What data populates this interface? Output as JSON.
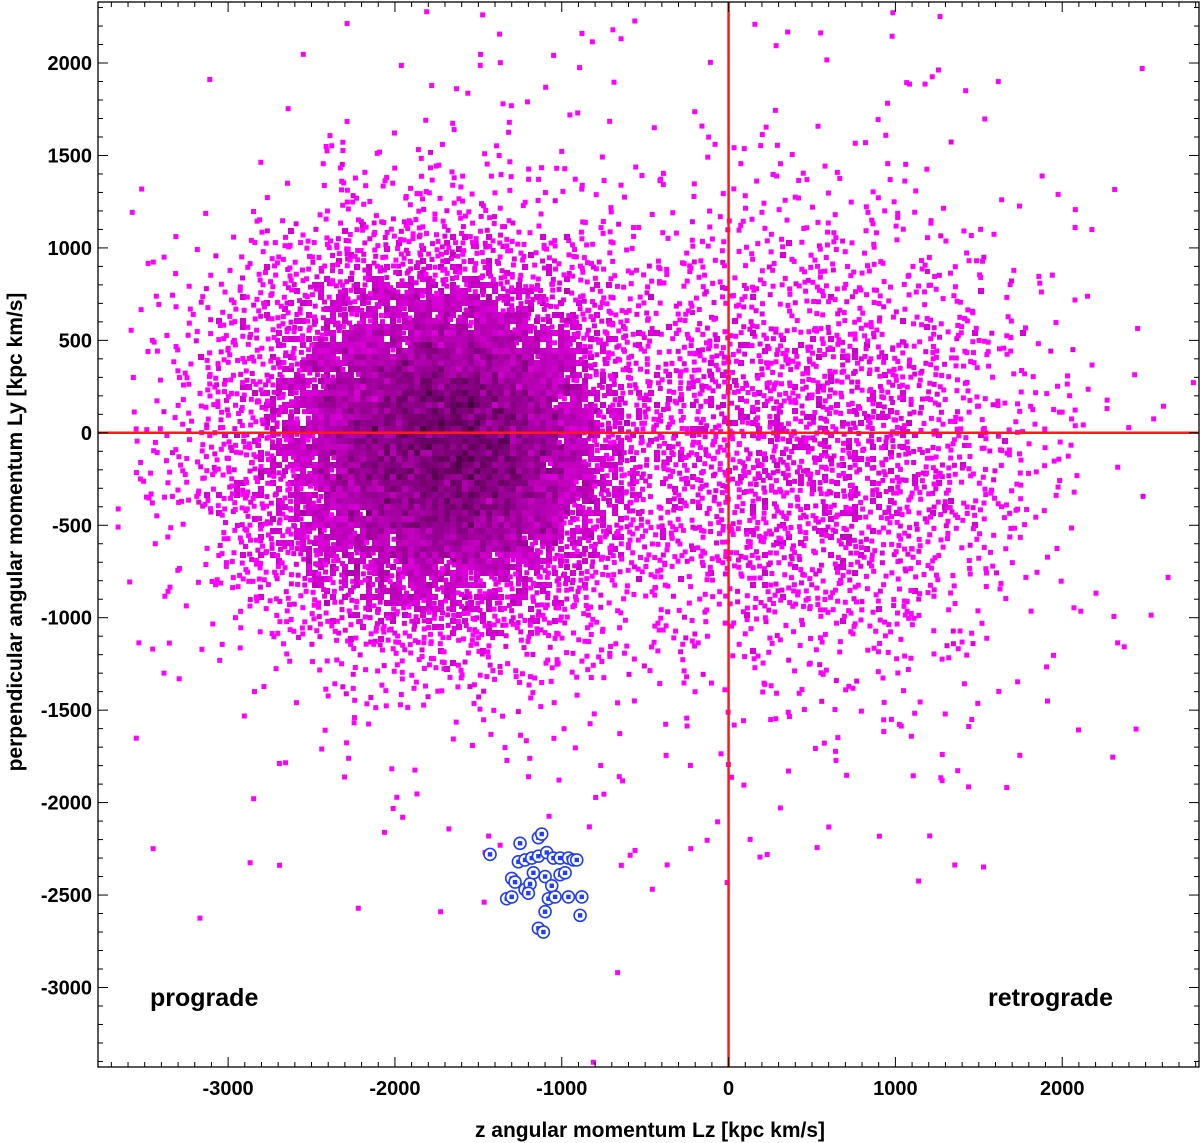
{
  "chart_data": {
    "type": "scatter",
    "title": "",
    "xlabel": "z angular momentum Lz [kpc km/s]",
    "ylabel": "perpendicular angular momentum Ly [kpc km/s]",
    "xlim": [
      -3780,
      2820
    ],
    "ylim": [
      -3430,
      2330
    ],
    "x_ticks": [
      -3000,
      -2000,
      -1000,
      0,
      1000,
      2000
    ],
    "y_ticks": [
      2000,
      1500,
      1000,
      500,
      0,
      -500,
      -1000,
      -1500,
      -2000,
      -2500,
      -3000
    ],
    "x_tick_labels": [
      "-3000",
      "-2000",
      "-1000",
      "0",
      "1000",
      "2000"
    ],
    "y_tick_labels": [
      "2000",
      "1500",
      "1000",
      "500",
      "0",
      "-500",
      "-1000",
      "-1500",
      "-2000",
      "-2500",
      "-3000"
    ],
    "grid": false,
    "reference_lines": {
      "x": 0,
      "y": 0,
      "color": "#ff1a1a"
    },
    "annotations": [
      "prograde",
      "retrograde"
    ],
    "background_distribution": {
      "marker_color": "#ff00ff",
      "core_color": "#1a0010",
      "density_peak": [
        -1800,
        -30
      ],
      "main_spread_x": 560,
      "main_spread_y": 500,
      "retrograde_tail_center": [
        500,
        -100
      ],
      "retrograde_tail_spread": [
        650,
        600
      ]
    },
    "highlight_points": {
      "color": "#1f3cff",
      "marker": "circle-dot",
      "points": [
        [
          -1430,
          -2280
        ],
        [
          -1250,
          -2220
        ],
        [
          -1140,
          -2190
        ],
        [
          -1120,
          -2170
        ],
        [
          -1260,
          -2320
        ],
        [
          -1220,
          -2310
        ],
        [
          -1180,
          -2300
        ],
        [
          -1140,
          -2290
        ],
        [
          -1090,
          -2270
        ],
        [
          -1050,
          -2300
        ],
        [
          -1010,
          -2300
        ],
        [
          -960,
          -2300
        ],
        [
          -930,
          -2310
        ],
        [
          -910,
          -2310
        ],
        [
          -1300,
          -2410
        ],
        [
          -1280,
          -2430
        ],
        [
          -1220,
          -2470
        ],
        [
          -1190,
          -2440
        ],
        [
          -1100,
          -2400
        ],
        [
          -1060,
          -2450
        ],
        [
          -1010,
          -2390
        ],
        [
          -980,
          -2380
        ],
        [
          -1330,
          -2520
        ],
        [
          -1300,
          -2510
        ],
        [
          -1200,
          -2490
        ],
        [
          -1080,
          -2520
        ],
        [
          -1040,
          -2510
        ],
        [
          -960,
          -2510
        ],
        [
          -880,
          -2510
        ],
        [
          -1100,
          -2590
        ],
        [
          -890,
          -2610
        ],
        [
          -1140,
          -2680
        ],
        [
          -1110,
          -2700
        ],
        [
          -1170,
          -2380
        ]
      ]
    }
  }
}
